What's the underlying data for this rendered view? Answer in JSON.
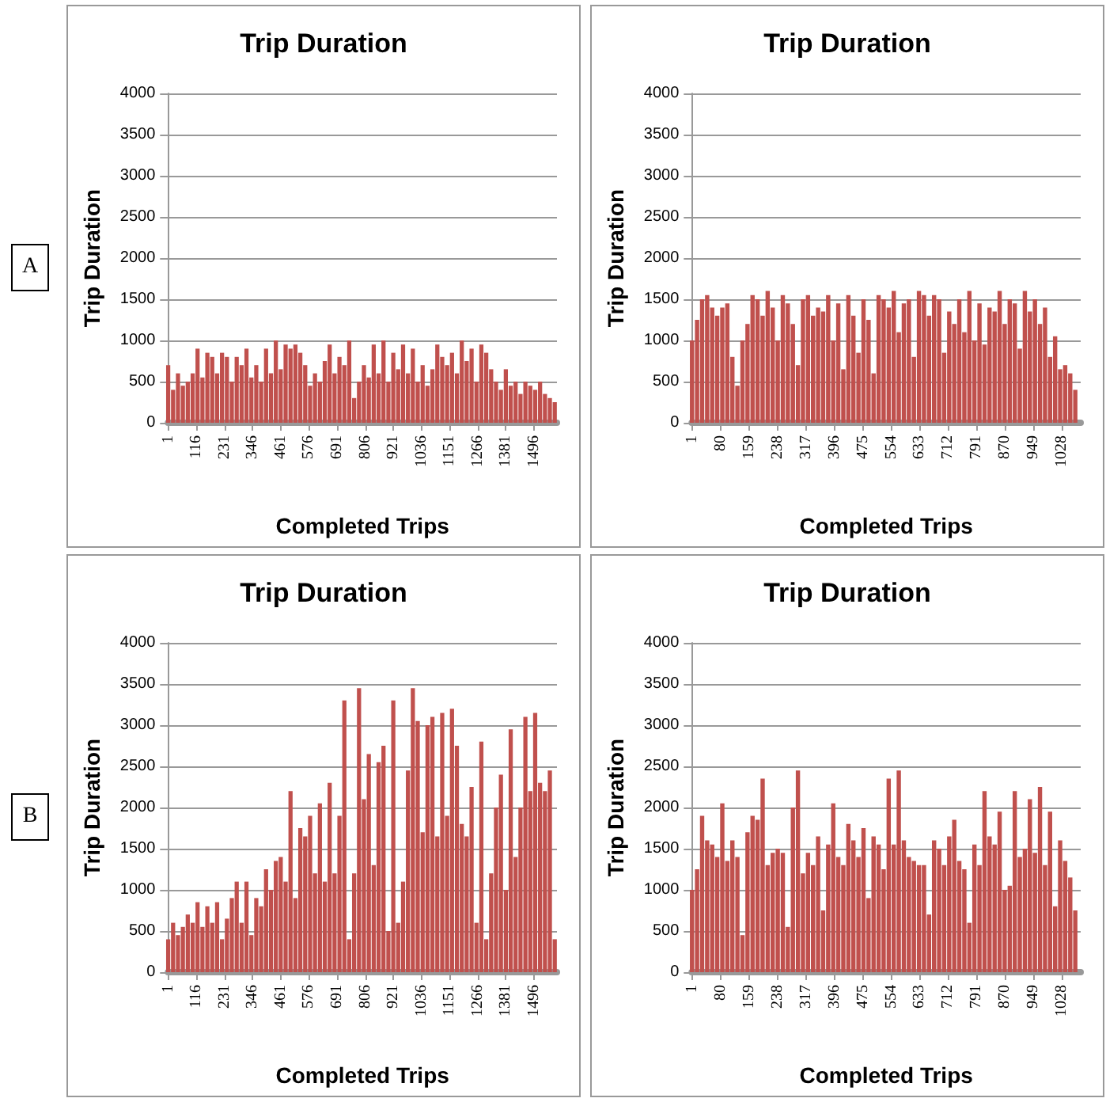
{
  "chart_data": [
    {
      "type": "bar",
      "title": "Trip Duration",
      "xlabel": "Completed Trips",
      "ylabel": "Trip Duration",
      "color": "#c0504d",
      "grid": "y",
      "annotations": [
        "A"
      ],
      "xlim": [
        0,
        1590
      ],
      "xticks": [
        1,
        116,
        231,
        346,
        461,
        576,
        691,
        806,
        921,
        1036,
        1151,
        1266,
        1381,
        1496
      ],
      "ylim": [
        0,
        4000
      ],
      "yticks": [
        0,
        500,
        1000,
        1500,
        2000,
        2500,
        3000,
        3500,
        4000
      ],
      "x": [
        1,
        21,
        41,
        61,
        81,
        101,
        121,
        141,
        161,
        181,
        201,
        221,
        241,
        261,
        281,
        301,
        321,
        341,
        361,
        381,
        401,
        421,
        441,
        461,
        481,
        501,
        521,
        541,
        561,
        581,
        601,
        621,
        641,
        661,
        681,
        701,
        721,
        741,
        761,
        781,
        801,
        821,
        841,
        861,
        881,
        901,
        921,
        941,
        961,
        981,
        1001,
        1021,
        1041,
        1061,
        1081,
        1101,
        1121,
        1141,
        1161,
        1181,
        1201,
        1221,
        1241,
        1261,
        1281,
        1301,
        1321,
        1341,
        1361,
        1381,
        1401,
        1421,
        1441,
        1461,
        1481,
        1501,
        1521,
        1541,
        1561,
        1581
      ],
      "values": [
        700,
        400,
        600,
        450,
        500,
        600,
        900,
        550,
        850,
        800,
        600,
        850,
        800,
        500,
        800,
        700,
        900,
        550,
        700,
        500,
        900,
        600,
        1000,
        650,
        950,
        900,
        950,
        850,
        700,
        450,
        600,
        500,
        750,
        950,
        600,
        800,
        700,
        1000,
        300,
        500,
        700,
        550,
        950,
        600,
        1000,
        500,
        850,
        650,
        950,
        600,
        900,
        500,
        700,
        450,
        650,
        950,
        800,
        700,
        850,
        600,
        1000,
        750,
        900,
        500,
        950,
        850,
        650,
        500,
        400,
        650,
        450,
        500,
        350,
        500,
        450,
        400,
        500,
        350,
        300,
        250
      ]
    },
    {
      "type": "bar",
      "title": "Trip Duration",
      "xlabel": "Completed Trips",
      "ylabel": "Trip Duration",
      "color": "#c0504d",
      "grid": "y",
      "xlim": [
        0,
        1080
      ],
      "xticks": [
        1,
        80,
        159,
        238,
        317,
        396,
        475,
        554,
        633,
        712,
        791,
        870,
        949,
        1028
      ],
      "ylim": [
        0,
        4000
      ],
      "yticks": [
        0,
        500,
        1000,
        1500,
        2000,
        2500,
        3000,
        3500,
        4000
      ],
      "x": [
        1,
        15,
        29,
        43,
        57,
        71,
        85,
        99,
        113,
        127,
        141,
        155,
        169,
        183,
        197,
        211,
        225,
        239,
        253,
        267,
        281,
        295,
        309,
        323,
        337,
        351,
        365,
        379,
        393,
        407,
        421,
        435,
        449,
        463,
        477,
        491,
        505,
        519,
        533,
        547,
        561,
        575,
        589,
        603,
        617,
        631,
        645,
        659,
        673,
        687,
        701,
        715,
        729,
        743,
        757,
        771,
        785,
        799,
        813,
        827,
        841,
        855,
        869,
        883,
        897,
        911,
        925,
        939,
        953,
        967,
        981,
        995,
        1009,
        1023,
        1037,
        1051,
        1065
      ],
      "values": [
        1000,
        1250,
        1500,
        1550,
        1400,
        1300,
        1400,
        1450,
        800,
        450,
        1000,
        1200,
        1550,
        1500,
        1300,
        1600,
        1400,
        1000,
        1550,
        1450,
        1200,
        700,
        1500,
        1550,
        1300,
        1400,
        1350,
        1550,
        1000,
        1450,
        650,
        1550,
        1300,
        850,
        1500,
        1250,
        600,
        1550,
        1500,
        1400,
        1600,
        1100,
        1450,
        1500,
        800,
        1600,
        1550,
        1300,
        1550,
        1500,
        850,
        1350,
        1200,
        1500,
        1100,
        1600,
        1000,
        1450,
        950,
        1400,
        1350,
        1600,
        1200,
        1500,
        1450,
        900,
        1600,
        1350,
        1500,
        1200,
        1400,
        800,
        1050,
        650,
        700,
        600,
        400
      ]
    },
    {
      "type": "bar",
      "title": "Trip Duration",
      "xlabel": "Completed Trips",
      "ylabel": "Trip Duration",
      "color": "#c0504d",
      "grid": "y",
      "annotations": [
        "B"
      ],
      "xlim": [
        0,
        1590
      ],
      "xticks": [
        1,
        116,
        231,
        346,
        461,
        576,
        691,
        806,
        921,
        1036,
        1151,
        1266,
        1381,
        1496
      ],
      "ylim": [
        0,
        4000
      ],
      "yticks": [
        0,
        500,
        1000,
        1500,
        2000,
        2500,
        3000,
        3500,
        4000
      ],
      "x": [
        1,
        21,
        41,
        61,
        81,
        101,
        121,
        141,
        161,
        181,
        201,
        221,
        241,
        261,
        281,
        301,
        321,
        341,
        361,
        381,
        401,
        421,
        441,
        461,
        481,
        501,
        521,
        541,
        561,
        581,
        601,
        621,
        641,
        661,
        681,
        701,
        721,
        741,
        761,
        781,
        801,
        821,
        841,
        861,
        881,
        901,
        921,
        941,
        961,
        981,
        1001,
        1021,
        1041,
        1061,
        1081,
        1101,
        1121,
        1141,
        1161,
        1181,
        1201,
        1221,
        1241,
        1261,
        1281,
        1301,
        1321,
        1341,
        1361,
        1381,
        1401,
        1421,
        1441,
        1461,
        1481,
        1501,
        1521,
        1541,
        1561,
        1581
      ],
      "values": [
        400,
        600,
        450,
        550,
        700,
        600,
        850,
        550,
        800,
        600,
        850,
        400,
        650,
        900,
        1100,
        600,
        1100,
        450,
        900,
        800,
        1250,
        1000,
        1350,
        1400,
        1100,
        2200,
        900,
        1750,
        1650,
        1900,
        1200,
        2050,
        1100,
        2300,
        1200,
        1900,
        3300,
        400,
        1200,
        3450,
        2100,
        2650,
        1300,
        2550,
        2750,
        500,
        3300,
        600,
        1100,
        2450,
        3450,
        3050,
        1700,
        3000,
        3100,
        1650,
        3150,
        1900,
        3200,
        2750,
        1800,
        1650,
        2250,
        600,
        2800,
        400,
        1200,
        2000,
        2400,
        1000,
        2950,
        1400,
        2000,
        3100,
        2200,
        3150,
        2300,
        2200,
        2450,
        400
      ]
    },
    {
      "type": "bar",
      "title": "Trip Duration",
      "xlabel": "Completed Trips",
      "ylabel": "Trip Duration",
      "color": "#c0504d",
      "grid": "y",
      "xlim": [
        0,
        1080
      ],
      "xticks": [
        1,
        80,
        159,
        238,
        317,
        396,
        475,
        554,
        633,
        712,
        791,
        870,
        949,
        1028
      ],
      "ylim": [
        0,
        4000
      ],
      "yticks": [
        0,
        500,
        1000,
        1500,
        2000,
        2500,
        3000,
        3500,
        4000
      ],
      "x": [
        1,
        15,
        29,
        43,
        57,
        71,
        85,
        99,
        113,
        127,
        141,
        155,
        169,
        183,
        197,
        211,
        225,
        239,
        253,
        267,
        281,
        295,
        309,
        323,
        337,
        351,
        365,
        379,
        393,
        407,
        421,
        435,
        449,
        463,
        477,
        491,
        505,
        519,
        533,
        547,
        561,
        575,
        589,
        603,
        617,
        631,
        645,
        659,
        673,
        687,
        701,
        715,
        729,
        743,
        757,
        771,
        785,
        799,
        813,
        827,
        841,
        855,
        869,
        883,
        897,
        911,
        925,
        939,
        953,
        967,
        981,
        995,
        1009,
        1023,
        1037,
        1051,
        1065
      ],
      "values": [
        1000,
        1250,
        1900,
        1600,
        1550,
        1400,
        2050,
        1350,
        1600,
        1400,
        450,
        1700,
        1900,
        1850,
        2350,
        1300,
        1450,
        1500,
        1450,
        550,
        2000,
        2450,
        1200,
        1450,
        1300,
        1650,
        750,
        1550,
        2050,
        1400,
        1300,
        1800,
        1600,
        1400,
        1750,
        900,
        1650,
        1550,
        1250,
        2350,
        1550,
        2450,
        1600,
        1400,
        1350,
        1300,
        1300,
        700,
        1600,
        1500,
        1300,
        1650,
        1850,
        1350,
        1250,
        600,
        1550,
        1300,
        2200,
        1650,
        1550,
        1950,
        1000,
        1050,
        2200,
        1400,
        1500,
        2100,
        1450,
        2250,
        1300,
        1950,
        800,
        1600,
        1350,
        1150,
        750
      ]
    }
  ]
}
